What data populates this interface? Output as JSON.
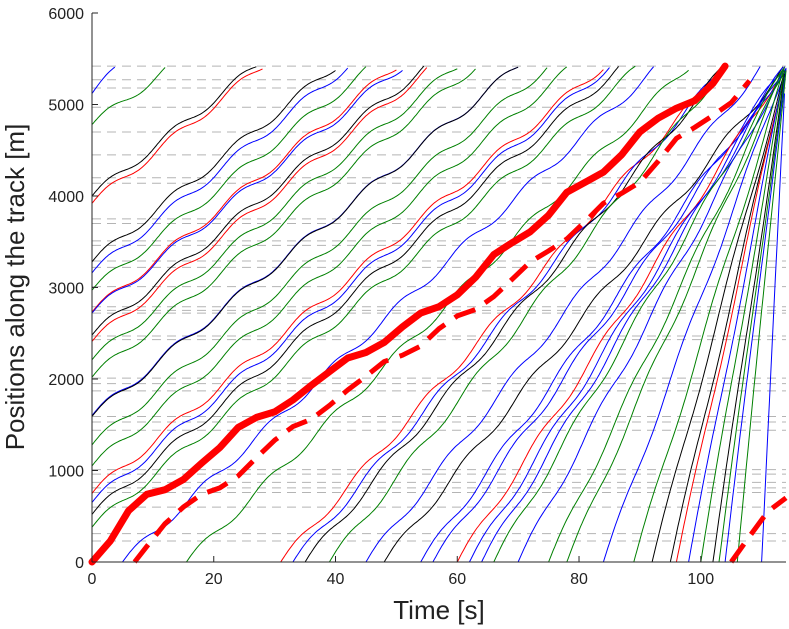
{
  "chart_data": {
    "type": "line",
    "title": "",
    "xlabel": "Time [s]",
    "ylabel": "Positions along the track [m]",
    "xlim": [
      0,
      114
    ],
    "ylim": [
      0,
      6000
    ],
    "x_ticks": [
      0,
      20,
      40,
      60,
      80,
      100
    ],
    "y_ticks": [
      0,
      1000,
      2000,
      3000,
      4000,
      5000,
      6000
    ],
    "x_tick_labels": [
      "0",
      "20",
      "40",
      "60",
      "80",
      "100"
    ],
    "y_tick_labels": [
      "0",
      "1000",
      "2000",
      "3000",
      "4000",
      "5000",
      "6000"
    ],
    "grid": "dashed horizontal reference lines at station positions",
    "reference_positions": [
      230,
      310,
      600,
      760,
      810,
      870,
      960,
      1010,
      1440,
      1530,
      1590,
      1870,
      1950,
      2010,
      2430,
      2470,
      2720,
      2750,
      2790,
      3010,
      3220,
      3290,
      3460,
      3510,
      3700,
      3750,
      4140,
      4200,
      4450,
      4700,
      4970,
      5180,
      5270,
      5420
    ],
    "wave": {
      "amplitude_m": 48,
      "period_s": 10.7
    },
    "trajectories": [
      {
        "color": "#0000ff",
        "t0": 0,
        "y0": 5120,
        "t1": 4.5
      },
      {
        "color": "#008000",
        "t0": 0,
        "y0": 4780,
        "t1": 13
      },
      {
        "color": "#000000",
        "t0": 0,
        "y0": 4000,
        "t1": 27
      },
      {
        "color": "#ff0000",
        "t0": 0,
        "y0": 3920,
        "t1": 28
      },
      {
        "color": "#000000",
        "t0": 0,
        "y0": 3280,
        "t1": 40
      },
      {
        "color": "#0000ff",
        "t0": 0,
        "y0": 3160,
        "t1": 42
      },
      {
        "color": "#008000",
        "t0": 0,
        "y0": 2970,
        "t1": 46
      },
      {
        "color": "#ff0000",
        "t0": 0,
        "y0": 2730,
        "t1": 50
      },
      {
        "color": "#0000ff",
        "t0": 0,
        "y0": 2720,
        "t1": 51
      },
      {
        "color": "#000000",
        "t0": 0,
        "y0": 2480,
        "t1": 55
      },
      {
        "color": "#ff0000",
        "t0": 0,
        "y0": 2410,
        "t1": 56
      },
      {
        "color": "#008000",
        "t0": 0,
        "y0": 2210,
        "t1": 60
      },
      {
        "color": "#008000",
        "t0": 0,
        "y0": 2020,
        "t1": 63
      },
      {
        "color": "#0000ff",
        "t0": 0,
        "y0": 1600,
        "t1": 70
      },
      {
        "color": "#000000",
        "t0": 0,
        "y0": 1590,
        "t1": 70
      },
      {
        "color": "#008000",
        "t0": 0,
        "y0": 1280,
        "t1": 75
      },
      {
        "color": "#008000",
        "t0": 0,
        "y0": 1050,
        "t1": 79
      },
      {
        "color": "#ff0000",
        "t0": 0,
        "y0": 750,
        "t1": 84
      },
      {
        "color": "#0000ff",
        "t0": 0,
        "y0": 650,
        "t1": 85
      },
      {
        "color": "#000000",
        "t0": 0,
        "y0": 520,
        "t1": 87
      },
      {
        "color": "#008000",
        "t0": 0,
        "y0": 380,
        "t1": 90
      },
      {
        "color": "#0000ff",
        "t0": 5,
        "y0": 0,
        "t1": 93
      },
      {
        "color": "#008000",
        "t0": 15.5,
        "y0": 0,
        "t1": 98
      },
      {
        "color": "#ff0000",
        "t0": 31,
        "y0": 0,
        "t1": 104
      },
      {
        "color": "#0000ff",
        "t0": 33,
        "y0": 0,
        "t1": 104
      },
      {
        "color": "#000000",
        "t0": 35,
        "y0": 0,
        "t1": 104
      },
      {
        "color": "#008000",
        "t0": 39,
        "y0": 0,
        "t1": 104
      },
      {
        "color": "#0000ff",
        "t0": 45,
        "y0": 0,
        "t1": 110
      },
      {
        "color": "#000000",
        "t0": 48,
        "y0": 0,
        "t1": 114
      },
      {
        "color": "#0000ff",
        "t0": 54,
        "y0": 0,
        "t1": 114
      },
      {
        "color": "#0000ff",
        "t0": 56,
        "y0": 0,
        "t1": 114
      },
      {
        "color": "#ff0000",
        "t0": 60,
        "y0": 0,
        "t1": 114
      },
      {
        "color": "#0000ff",
        "t0": 62,
        "y0": 0,
        "t1": 114
      },
      {
        "color": "#0000ff",
        "t0": 64,
        "y0": 0,
        "t1": 114
      },
      {
        "color": "#008000",
        "t0": 66,
        "y0": 0,
        "t1": 114
      },
      {
        "color": "#0000ff",
        "t0": 70,
        "y0": 0,
        "t1": 114
      },
      {
        "color": "#008000",
        "t0": 75,
        "y0": 0,
        "t1": 114
      },
      {
        "color": "#008000",
        "t0": 78,
        "y0": 0,
        "t1": 114
      },
      {
        "color": "#0000ff",
        "t0": 84,
        "y0": 0,
        "t1": 114
      },
      {
        "color": "#008000",
        "t0": 89,
        "y0": 0,
        "t1": 114
      },
      {
        "color": "#000000",
        "t0": 92,
        "y0": 0,
        "t1": 114
      },
      {
        "color": "#000000",
        "t0": 95,
        "y0": 0,
        "t1": 114
      },
      {
        "color": "#ff0000",
        "t0": 96,
        "y0": 0,
        "t1": 114
      },
      {
        "color": "#0000ff",
        "t0": 98,
        "y0": 0,
        "t1": 114
      },
      {
        "color": "#008000",
        "t0": 100,
        "y0": 0,
        "t1": 114
      },
      {
        "color": "#000000",
        "t0": 102,
        "y0": 0,
        "t1": 114
      },
      {
        "color": "#008000",
        "t0": 103,
        "y0": 0,
        "t1": 114
      },
      {
        "color": "#0000ff",
        "t0": 104,
        "y0": 0,
        "t1": 114
      },
      {
        "color": "#008000",
        "t0": 106,
        "y0": 0,
        "t1": 114
      },
      {
        "color": "#0000ff",
        "t0": 110,
        "y0": 0,
        "t1": 114
      }
    ],
    "highlighted": [
      {
        "name": "solid-red-train",
        "color": "#ff0000",
        "style": "solid",
        "points": [
          [
            0,
            0
          ],
          [
            3,
            230
          ],
          [
            6,
            560
          ],
          [
            9,
            740
          ],
          [
            12,
            790
          ],
          [
            15,
            900
          ],
          [
            18,
            1080
          ],
          [
            21,
            1250
          ],
          [
            24,
            1470
          ],
          [
            27,
            1580
          ],
          [
            30,
            1640
          ],
          [
            33,
            1770
          ],
          [
            36,
            1930
          ],
          [
            39,
            2080
          ],
          [
            42,
            2230
          ],
          [
            45,
            2290
          ],
          [
            48,
            2400
          ],
          [
            51,
            2570
          ],
          [
            54,
            2720
          ],
          [
            57,
            2790
          ],
          [
            60,
            2920
          ],
          [
            63,
            3110
          ],
          [
            66,
            3360
          ],
          [
            69,
            3490
          ],
          [
            72,
            3610
          ],
          [
            75,
            3790
          ],
          [
            78,
            4040
          ],
          [
            81,
            4150
          ],
          [
            84,
            4260
          ],
          [
            87,
            4450
          ],
          [
            90,
            4700
          ],
          [
            93,
            4850
          ],
          [
            96,
            4960
          ],
          [
            99,
            5040
          ],
          [
            102,
            5230
          ],
          [
            104,
            5420
          ]
        ]
      },
      {
        "name": "dashed-red-train",
        "color": "#ff0000",
        "style": "dashed",
        "points": [
          [
            7,
            0
          ],
          [
            9,
            170
          ],
          [
            12,
            420
          ],
          [
            15,
            600
          ],
          [
            18,
            740
          ],
          [
            21,
            810
          ],
          [
            24,
            940
          ],
          [
            27,
            1140
          ],
          [
            30,
            1330
          ],
          [
            33,
            1480
          ],
          [
            36,
            1560
          ],
          [
            39,
            1710
          ],
          [
            42,
            1880
          ],
          [
            45,
            2030
          ],
          [
            48,
            2190
          ],
          [
            51,
            2260
          ],
          [
            54,
            2360
          ],
          [
            57,
            2550
          ],
          [
            60,
            2690
          ],
          [
            63,
            2760
          ],
          [
            66,
            2900
          ],
          [
            69,
            3090
          ],
          [
            72,
            3280
          ],
          [
            75,
            3400
          ],
          [
            78,
            3530
          ],
          [
            81,
            3720
          ],
          [
            84,
            3920
          ],
          [
            87,
            4030
          ],
          [
            90,
            4150
          ],
          [
            93,
            4380
          ],
          [
            96,
            4630
          ],
          [
            99,
            4750
          ],
          [
            102,
            4880
          ],
          [
            105,
            5020
          ],
          [
            108,
            5260
          ]
        ]
      },
      {
        "name": "dashed-red-train-2",
        "color": "#ff0000",
        "style": "dashed",
        "points": [
          [
            105,
            0
          ],
          [
            108,
            280
          ],
          [
            111,
            550
          ],
          [
            114,
            700
          ]
        ]
      }
    ]
  }
}
